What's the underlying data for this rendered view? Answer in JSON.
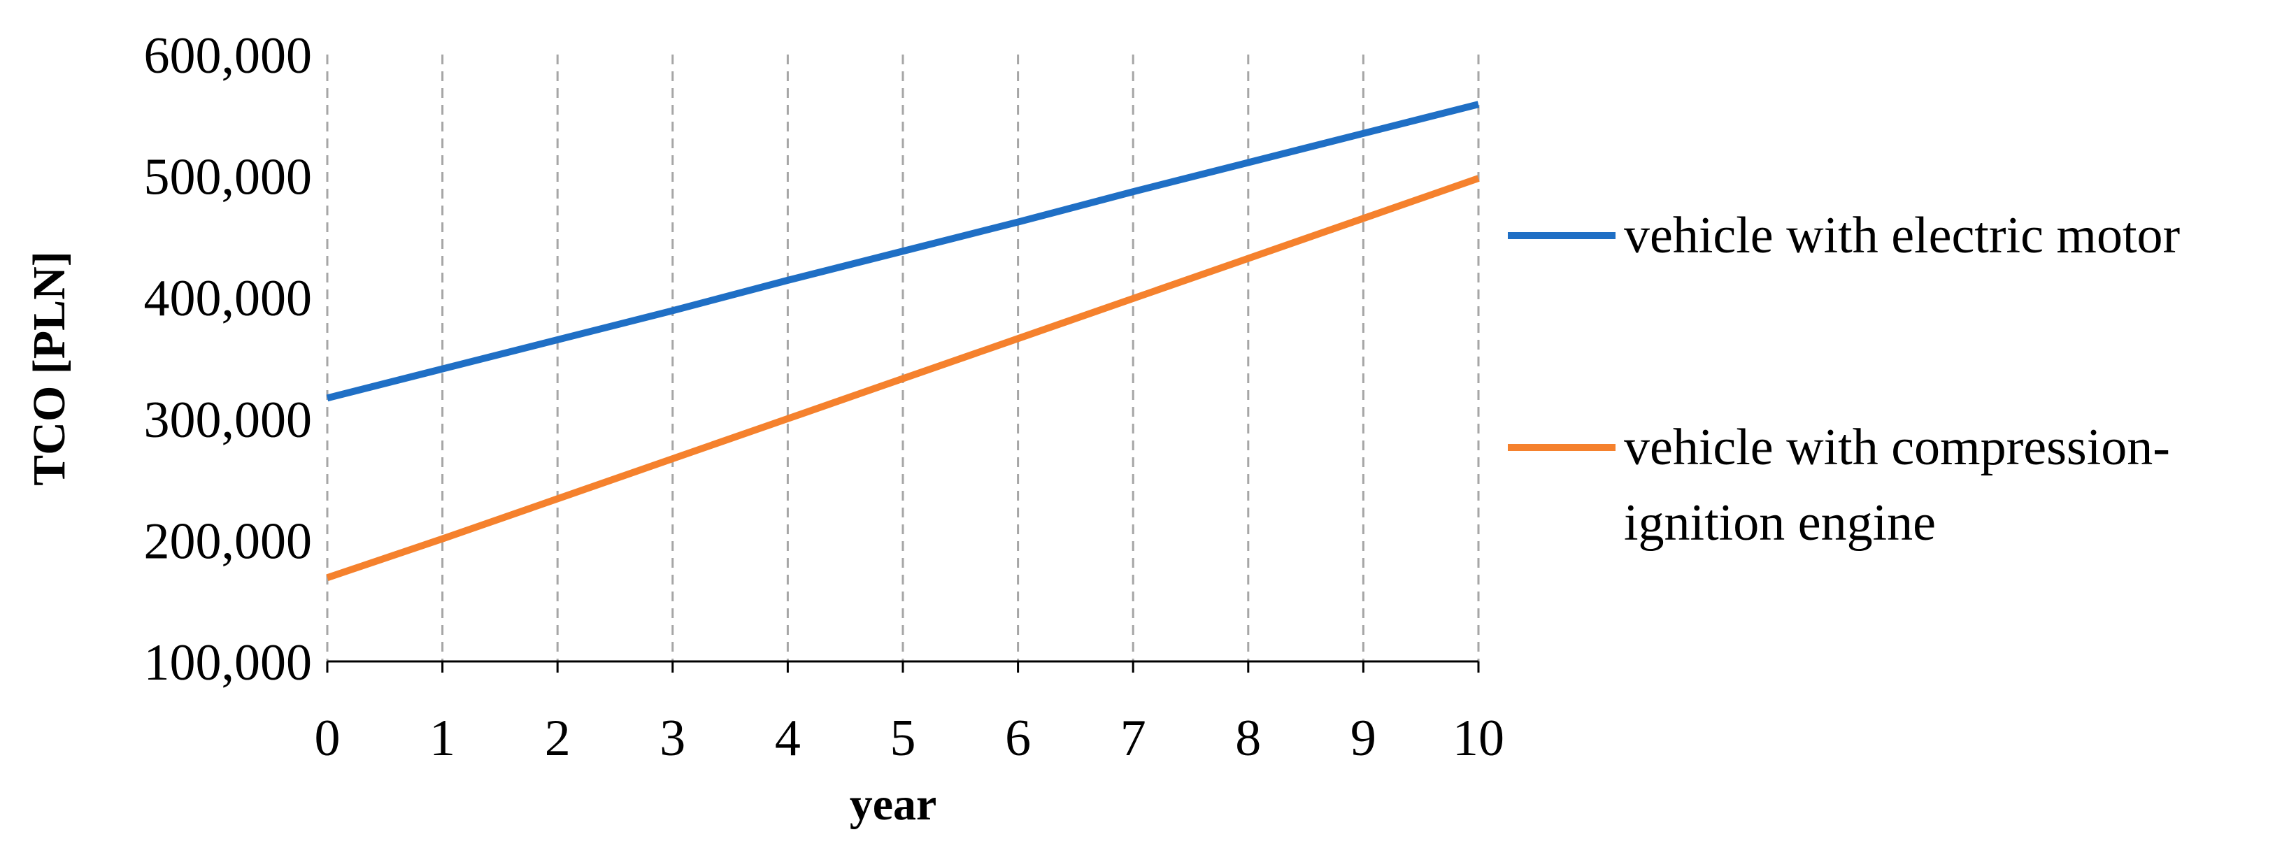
{
  "chart_data": {
    "type": "line",
    "title": "",
    "xlabel": "year",
    "ylabel": "TCO [PLN]",
    "x": [
      0,
      1,
      2,
      3,
      4,
      5,
      6,
      7,
      8,
      9,
      10
    ],
    "x_tick_labels": [
      "0",
      "1",
      "2",
      "3",
      "4",
      "5",
      "6",
      "7",
      "8",
      "9",
      "10"
    ],
    "y_tick_labels": [
      "100,000",
      "200,000",
      "300,000",
      "400,000",
      "500,000",
      "600,000"
    ],
    "y_ticks": [
      100000,
      200000,
      300000,
      400000,
      500000,
      600000
    ],
    "xlim": [
      0,
      10
    ],
    "ylim": [
      100000,
      600000
    ],
    "grid": "vertical dashed",
    "legend_position": "right",
    "series": [
      {
        "name_lines": [
          "vehicle with electric motor"
        ],
        "color": "#1f6fc5",
        "values": [
          317000,
          341000,
          365000,
          389000,
          414000,
          438000,
          462000,
          487000,
          511000,
          535000,
          559000
        ]
      },
      {
        "name_lines": [
          "vehicle with compression-",
          "ignition engine"
        ],
        "color": "#f5812d",
        "values": [
          169000,
          201000,
          234000,
          267000,
          300000,
          333000,
          366000,
          399000,
          432000,
          465000,
          498000
        ]
      }
    ]
  }
}
